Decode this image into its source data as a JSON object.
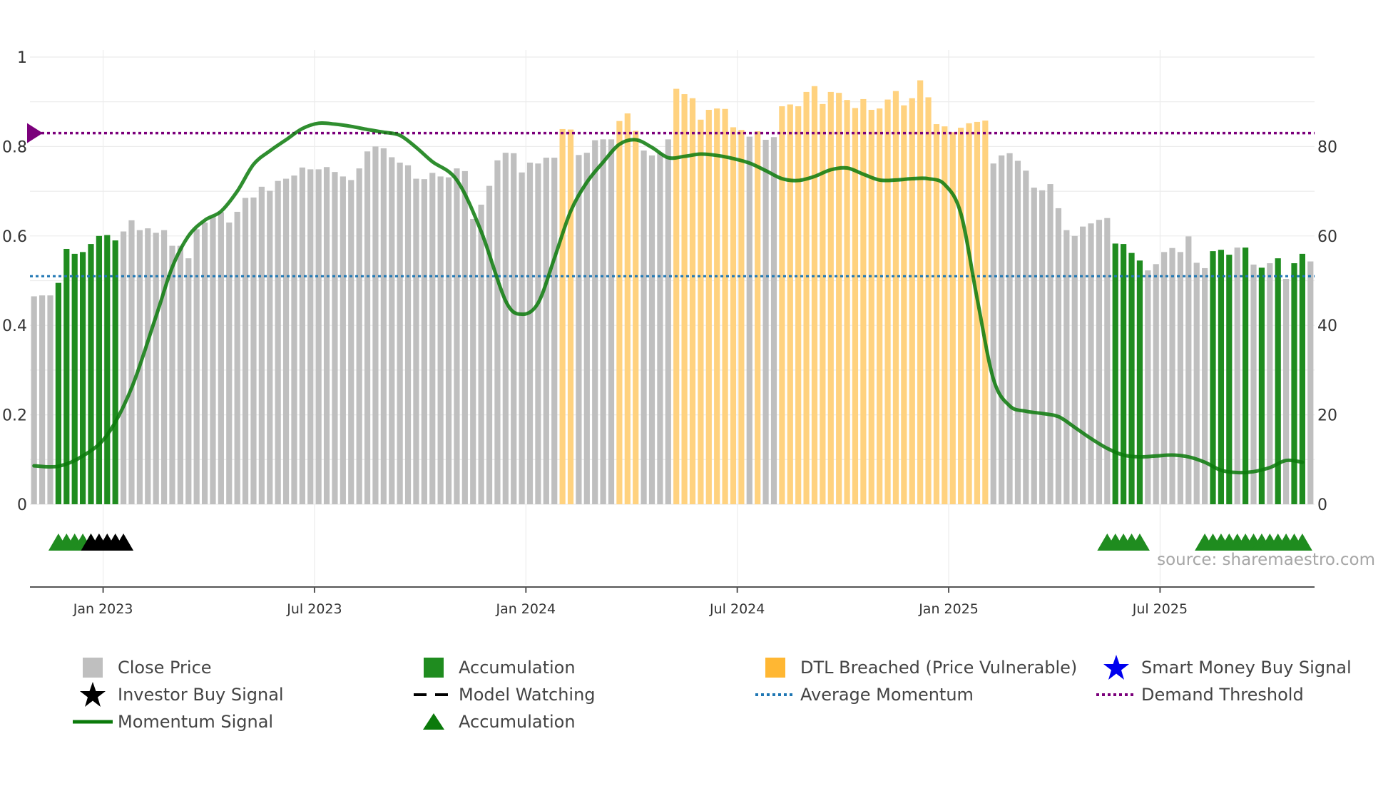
{
  "chart_data": {
    "type": "bar",
    "y_left_ticks": [
      "0",
      "0.2",
      "0.4",
      "0.6",
      "0.8",
      "1"
    ],
    "y_right_ticks": [
      "0",
      "20",
      "40",
      "60",
      "80"
    ],
    "ylim_left": [
      0,
      1
    ],
    "ylim_right": [
      0,
      100
    ],
    "x_tick_labels": [
      "Jan 2023",
      "Jul 2023",
      "Jan 2024",
      "Jul 2024",
      "Jan 2025",
      "Jul 2025"
    ],
    "x_tick_weeks": [
      9,
      35,
      61,
      87,
      113,
      139
    ],
    "bars": {
      "values": [
        46.5,
        46.7,
        46.7,
        49.5,
        57.1,
        56.0,
        56.4,
        58.2,
        60.0,
        60.2,
        59.0,
        61.0,
        63.5,
        61.3,
        61.7,
        60.7,
        61.3,
        57.8,
        57.8,
        55.0,
        61.5,
        63.0,
        64.2,
        65.3,
        63.0,
        65.4,
        68.5,
        68.6,
        71.0,
        70.1,
        72.3,
        72.8,
        73.5,
        75.3,
        74.9,
        74.9,
        75.4,
        74.3,
        73.3,
        72.5,
        75.1,
        78.9,
        80.0,
        79.6,
        77.6,
        76.4,
        75.8,
        72.8,
        72.7,
        74.1,
        73.3,
        73.1,
        75.1,
        74.5,
        63.8,
        67.0,
        71.2,
        76.9,
        78.6,
        78.5,
        74.2,
        76.4,
        76.2,
        77.5,
        77.5,
        83.9,
        83.8,
        78.1,
        78.6,
        81.4,
        81.6,
        81.6,
        85.7,
        87.4,
        83.5,
        79.1,
        78.0,
        78.6,
        81.6,
        92.9,
        91.7,
        90.8,
        86.0,
        88.2,
        88.5,
        88.4,
        84.3,
        83.7,
        82.2,
        83.4,
        81.5,
        82.1,
        89.0,
        89.4,
        89.0,
        92.2,
        93.5,
        89.5,
        92.2,
        92.0,
        90.4,
        88.6,
        90.6,
        88.2,
        88.5,
        90.5,
        92.4,
        89.2,
        90.8,
        94.8,
        91.0,
        85.0,
        84.5,
        83.2,
        84.2,
        85.2,
        85.5,
        85.8,
        76.2,
        78.0,
        78.5,
        76.8,
        74.6,
        70.8,
        70.2,
        71.6,
        66.2,
        61.3,
        60.0,
        62.1,
        62.8,
        63.6,
        64.0,
        58.3,
        58.2,
        56.2,
        54.5,
        52.3,
        53.7,
        56.4,
        57.3,
        56.4,
        59.9,
        54.0,
        52.8,
        56.6,
        56.9,
        55.8,
        57.4,
        57.4,
        53.6,
        52.9,
        53.9,
        55.0,
        50.4,
        53.9,
        56.0,
        54.3
      ],
      "types": [
        "close",
        "close",
        "close",
        "accumulation",
        "accumulation",
        "accumulation",
        "accumulation",
        "accumulation",
        "accumulation",
        "accumulation",
        "accumulation",
        "close",
        "close",
        "close",
        "close",
        "close",
        "close",
        "close",
        "close",
        "close",
        "close",
        "close",
        "close",
        "close",
        "close",
        "close",
        "close",
        "close",
        "close",
        "close",
        "close",
        "close",
        "close",
        "close",
        "close",
        "close",
        "close",
        "close",
        "close",
        "close",
        "close",
        "close",
        "close",
        "close",
        "close",
        "close",
        "close",
        "close",
        "close",
        "close",
        "close",
        "close",
        "close",
        "close",
        "close",
        "close",
        "close",
        "close",
        "close",
        "close",
        "close",
        "close",
        "close",
        "close",
        "close",
        "dtl",
        "dtl",
        "close",
        "close",
        "close",
        "close",
        "close",
        "dtl",
        "dtl",
        "dtl",
        "close",
        "close",
        "close",
        "close",
        "dtl",
        "dtl",
        "dtl",
        "dtl",
        "dtl",
        "dtl",
        "dtl",
        "dtl",
        "dtl",
        "close",
        "dtl",
        "close",
        "close",
        "dtl",
        "dtl",
        "dtl",
        "dtl",
        "dtl",
        "dtl",
        "dtl",
        "dtl",
        "dtl",
        "dtl",
        "dtl",
        "dtl",
        "dtl",
        "dtl",
        "dtl",
        "dtl",
        "dtl",
        "dtl",
        "dtl",
        "dtl",
        "dtl",
        "dtl",
        "dtl",
        "dtl",
        "dtl",
        "dtl",
        "close",
        "close",
        "close",
        "close",
        "close",
        "close",
        "close",
        "close",
        "close",
        "close",
        "close",
        "close",
        "close",
        "close",
        "close",
        "accumulation",
        "accumulation",
        "accumulation",
        "accumulation",
        "close",
        "close",
        "close",
        "close",
        "close",
        "close",
        "close",
        "close",
        "accumulation",
        "accumulation",
        "accumulation",
        "close",
        "accumulation",
        "close",
        "accumulation",
        "close",
        "accumulation",
        "close",
        "accumulation",
        "accumulation"
      ]
    },
    "momentum_signal": {
      "x": [
        0,
        3,
        6,
        9,
        12,
        15,
        17,
        19,
        21,
        23,
        25,
        27,
        29,
        31,
        33,
        35,
        37,
        39,
        41,
        43,
        45,
        47,
        49,
        52,
        55,
        58,
        60,
        62,
        64,
        66,
        68,
        70,
        72,
        74,
        76,
        78,
        80,
        82,
        84,
        86,
        88,
        90,
        92,
        94,
        96,
        98,
        100,
        102,
        104,
        106,
        108,
        110,
        112,
        114,
        116,
        118,
        120,
        122,
        124,
        126,
        128,
        130,
        132,
        134,
        136,
        138,
        140,
        142,
        144,
        146,
        148,
        150,
        152,
        154,
        156
      ],
      "y": [
        8.6,
        8.5,
        10.8,
        15.5,
        26,
        42,
        53,
        60,
        63.5,
        65.5,
        70,
        76,
        79,
        81.5,
        84,
        85.2,
        85,
        84.5,
        83.8,
        83.2,
        82.5,
        79.8,
        76.6,
        72.5,
        61,
        45.5,
        42.5,
        45,
        55,
        65.5,
        72,
        76.5,
        80.5,
        81.5,
        79.8,
        77.5,
        77.8,
        78.3,
        78,
        77.3,
        76.3,
        74.6,
        72.8,
        72.4,
        73.3,
        74.8,
        75.2,
        73.8,
        72.5,
        72.5,
        72.8,
        72.8,
        71.5,
        65,
        46,
        28,
        22,
        20.8,
        20.3,
        19.6,
        17.2,
        14.7,
        12.5,
        11,
        10.6,
        10.8,
        11,
        10.6,
        9.4,
        7.6,
        7.1,
        7.3,
        8.2,
        9.8,
        9.4
      ]
    },
    "average_momentum": 51,
    "demand_threshold": 0.83,
    "marker_rows": {
      "accumulation_weeks": [
        3,
        4,
        5,
        6,
        7,
        132,
        133,
        134,
        135,
        136,
        144,
        145,
        146,
        147,
        148,
        149,
        150,
        151,
        152,
        153,
        154,
        155,
        156
      ],
      "investor_buy_weeks": [
        7,
        8,
        9,
        10,
        11
      ]
    },
    "source": "source: sharemaestro.com",
    "colors": {
      "close": "#bfbfbf",
      "accumulation": "#1f8c1f",
      "dtl": "#ffd27f",
      "momentum": "#0b7a0b",
      "average": "#1f77b4",
      "demand": "#7b007b"
    },
    "legend": [
      {
        "label": "Close Price",
        "symbol": "gray-square"
      },
      {
        "label": "Accumulation",
        "symbol": "green-square"
      },
      {
        "label": "DTL Breached (Price Vulnerable)",
        "symbol": "orange-square"
      },
      {
        "label": "Smart Money Buy Signal",
        "symbol": "blue-star"
      },
      {
        "label": "Investor Buy Signal",
        "symbol": "black-star"
      },
      {
        "label": "Model Watching",
        "symbol": "black-dash"
      },
      {
        "label": "Average Momentum",
        "symbol": "blue-dot"
      },
      {
        "label": "Demand Threshold",
        "symbol": "purple-dot"
      },
      {
        "label": "Momentum Signal",
        "symbol": "green-line"
      },
      {
        "label": "Accumulation",
        "symbol": "green-triangle"
      }
    ]
  }
}
